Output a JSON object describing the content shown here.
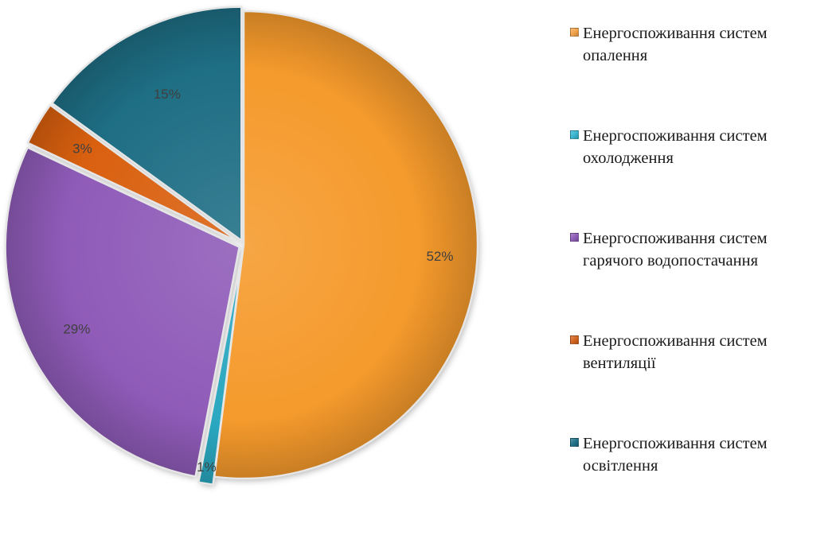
{
  "chart_data": {
    "type": "pie",
    "title": "",
    "start_angle_deg": 0,
    "direction": "clockwise",
    "slices": [
      {
        "label": "Енергоспоживання систем\nопалення",
        "value": 52,
        "label_text": "52%",
        "color": "#f59a2c",
        "legend_color": "#f1a34a"
      },
      {
        "label": "Енергоспоживання систем\nохолодження",
        "value": 1,
        "label_text": "1%",
        "color": "#2aa7c0",
        "legend_color": "#36b4cf"
      },
      {
        "label": "Енергоспоживання систем\nгарячого водопостачання",
        "value": 29,
        "label_text": "29%",
        "color": "#8f5bb8",
        "legend_color": "#8d5cb7"
      },
      {
        "label": "Енергоспоживання систем\nвентиляції",
        "value": 3,
        "label_text": "3%",
        "color": "#d9600f",
        "legend_color": "#d2621d"
      },
      {
        "label": "Енергоспоживання систем\nосвітлення",
        "value": 15,
        "label_text": "15%",
        "color": "#1e6e84",
        "legend_color": "#1f6f86"
      }
    ],
    "legend_position": "right"
  }
}
